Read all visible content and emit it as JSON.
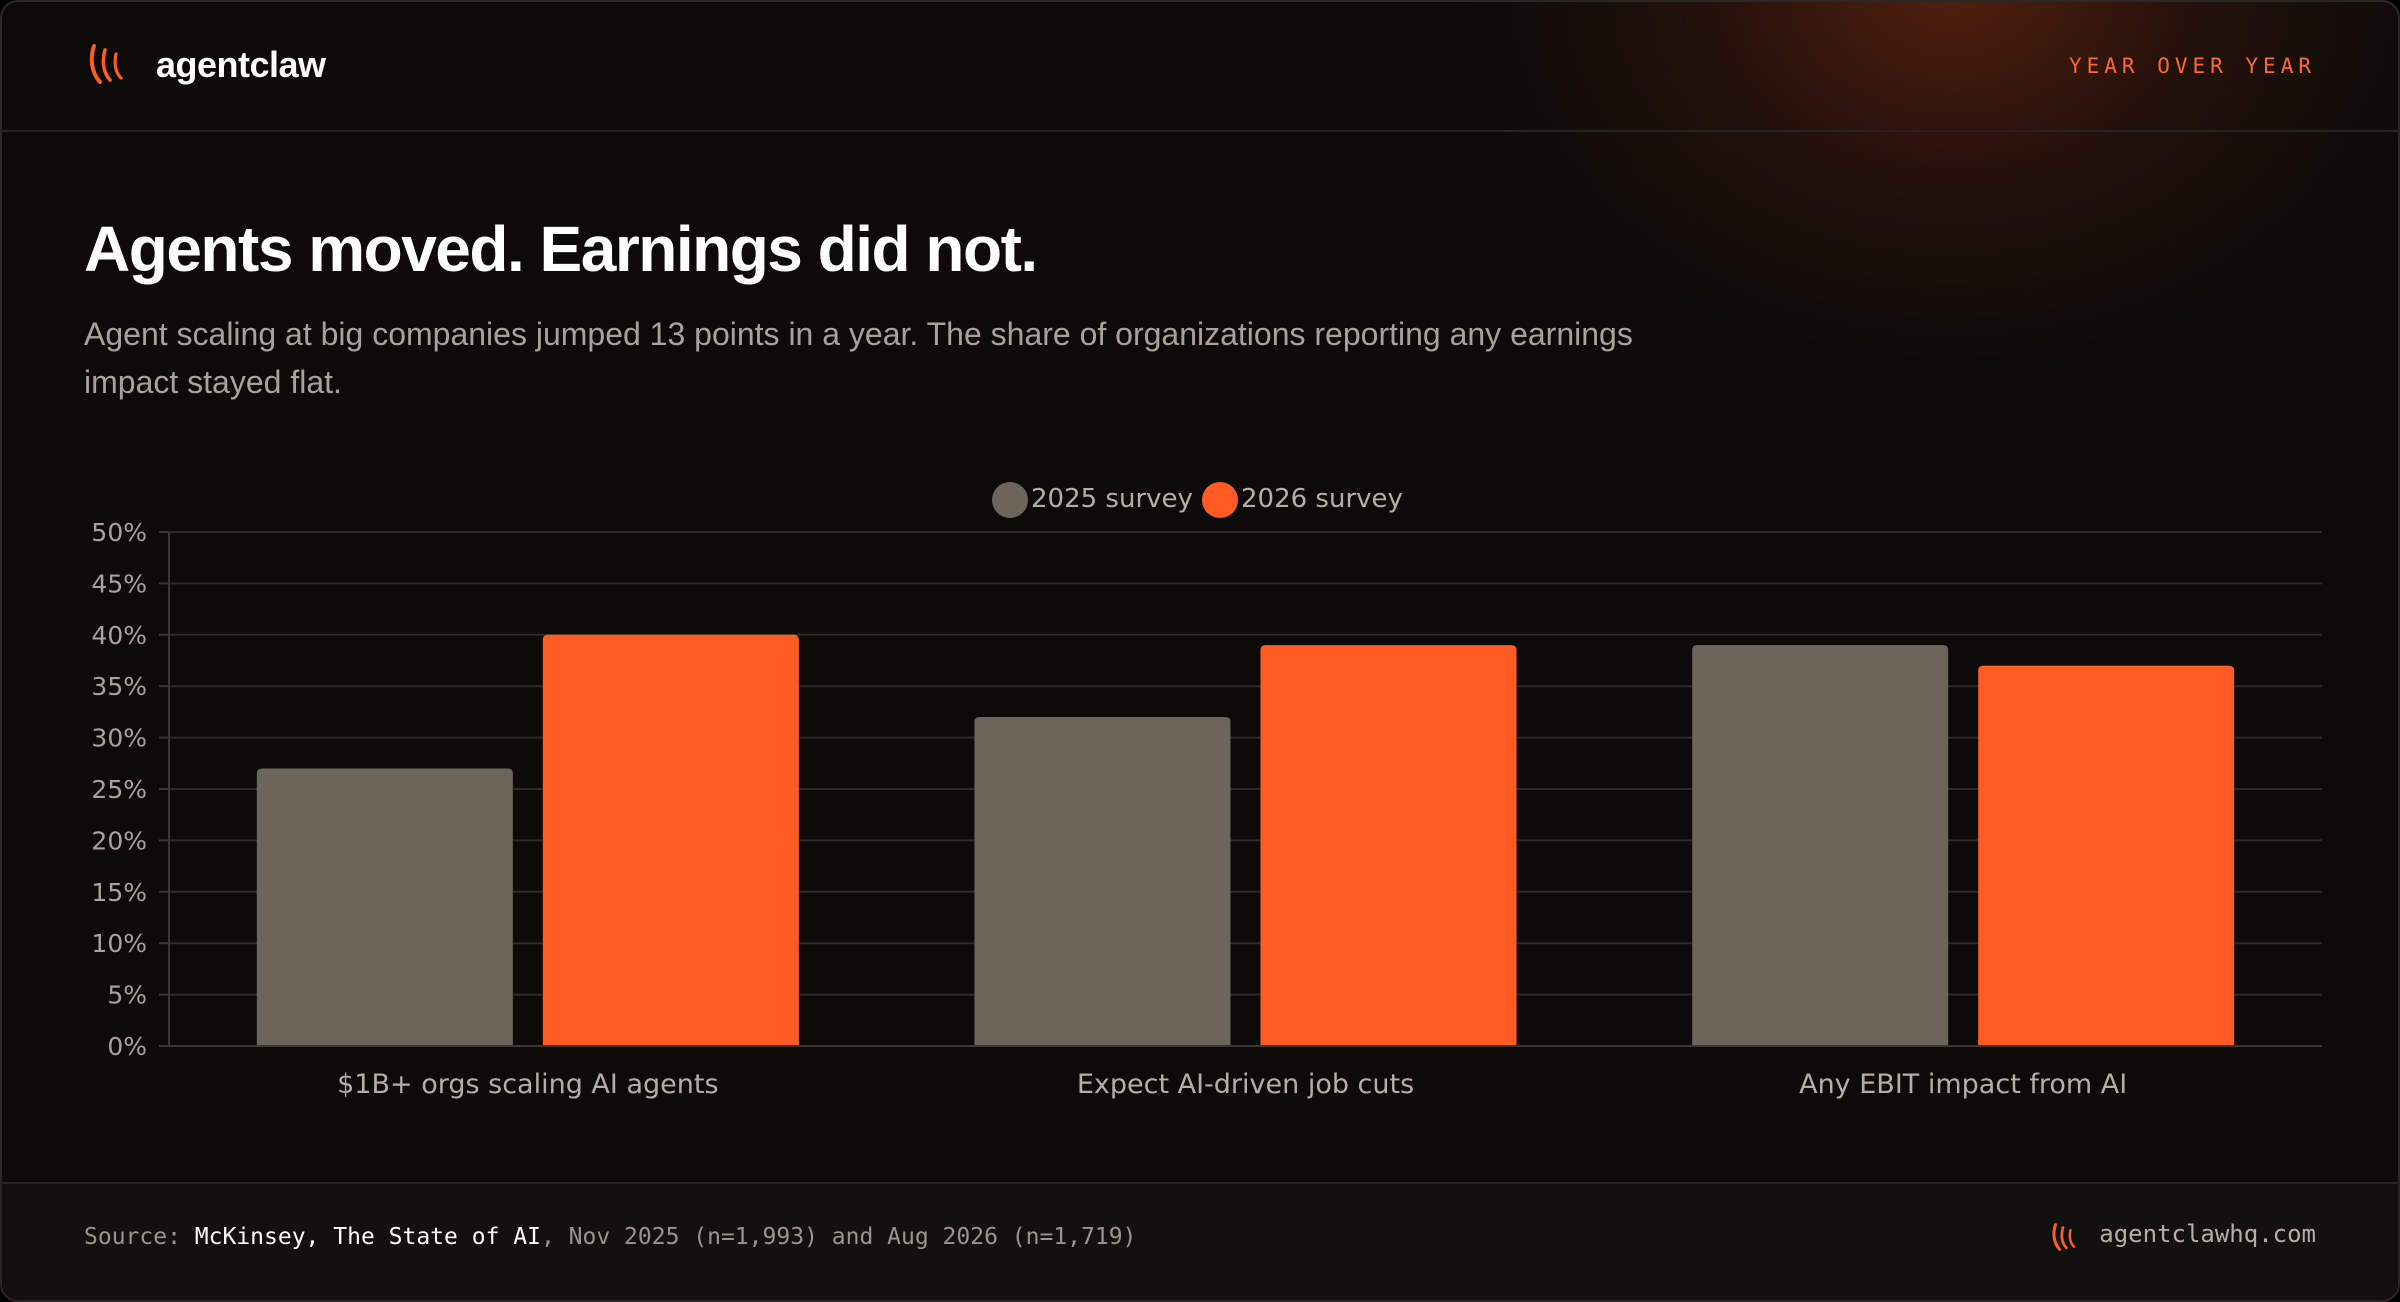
{
  "brand": {
    "name": "agentclaw"
  },
  "header": {
    "tag": "YEAR OVER YEAR"
  },
  "headline": {
    "title": "Agents moved. Earnings did not.",
    "subtitle": "Agent scaling at big companies jumped 13 points in a year. The share of organizations reporting any earnings impact stayed flat."
  },
  "colors": {
    "accent": "#ff5b22",
    "muted": "#6b655a",
    "background": "#0c0b0a"
  },
  "chart_data": {
    "type": "bar",
    "categories": [
      "$1B+ orgs scaling AI agents",
      "Expect AI-driven job cuts",
      "Any EBIT impact from AI"
    ],
    "series": [
      {
        "name": "2025 survey",
        "values": [
          27,
          32,
          39
        ],
        "color": "#6b655a"
      },
      {
        "name": "2026 survey",
        "values": [
          40,
          39,
          37
        ],
        "color": "#ff5b22"
      }
    ],
    "title": "",
    "xlabel": "",
    "ylabel": "",
    "ylim": [
      0,
      50
    ],
    "yticks": [
      "0%",
      "5%",
      "10%",
      "15%",
      "20%",
      "25%",
      "30%",
      "35%",
      "40%",
      "45%",
      "50%"
    ],
    "grid": true,
    "legend_position": "top-center"
  },
  "footer": {
    "source_prefix": "Source: ",
    "source_name": "McKinsey, The State of AI",
    "source_rest": ", Nov 2025 (n=1,993) and Aug 2026 (n=1,719)",
    "site": "agentclawhq.com"
  }
}
